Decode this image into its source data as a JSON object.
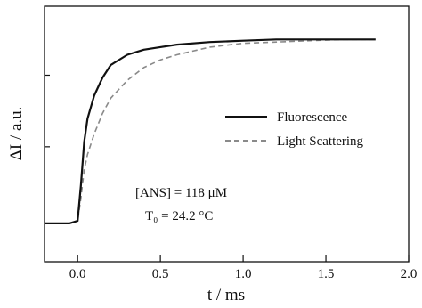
{
  "chart_data": {
    "type": "line",
    "xlabel": "t / ms",
    "ylabel": "ΔI / a.u.",
    "xlim": [
      -0.2,
      2.0
    ],
    "ylim": [
      0,
      1.0
    ],
    "x_ticks": [
      0.0,
      0.5,
      1.0,
      1.5,
      2.0
    ],
    "x_tick_labels": [
      "0.0",
      "0.5",
      "1.0",
      "1.5",
      "2.0"
    ],
    "y_ticks": [
      0.15,
      0.45,
      0.73
    ],
    "grid": false,
    "legend_position": "right",
    "annotations": [
      {
        "label": "[ANS] = 118 μM"
      },
      {
        "label": "T₀ = 24.2 °C"
      }
    ],
    "series": [
      {
        "name": "Fluorescence",
        "style": "solid",
        "color": "#111111",
        "x": [
          -0.2,
          -0.1,
          -0.05,
          0.0,
          0.02,
          0.04,
          0.06,
          0.1,
          0.15,
          0.2,
          0.3,
          0.4,
          0.5,
          0.6,
          0.8,
          1.0,
          1.2,
          1.4,
          1.6,
          1.8
        ],
        "y": [
          0.15,
          0.15,
          0.15,
          0.16,
          0.3,
          0.47,
          0.56,
          0.65,
          0.72,
          0.77,
          0.81,
          0.83,
          0.84,
          0.85,
          0.86,
          0.865,
          0.87,
          0.87,
          0.87,
          0.87
        ]
      },
      {
        "name": "Light Scattering",
        "style": "dashed",
        "color": "#8a8a8a",
        "x": [
          -0.2,
          -0.1,
          -0.05,
          0.0,
          0.02,
          0.04,
          0.06,
          0.1,
          0.15,
          0.2,
          0.3,
          0.4,
          0.5,
          0.6,
          0.8,
          1.0,
          1.2,
          1.4,
          1.6,
          1.8
        ],
        "y": [
          0.15,
          0.15,
          0.15,
          0.16,
          0.25,
          0.36,
          0.42,
          0.5,
          0.58,
          0.64,
          0.71,
          0.76,
          0.79,
          0.81,
          0.84,
          0.855,
          0.86,
          0.865,
          0.87,
          0.87
        ]
      }
    ]
  }
}
